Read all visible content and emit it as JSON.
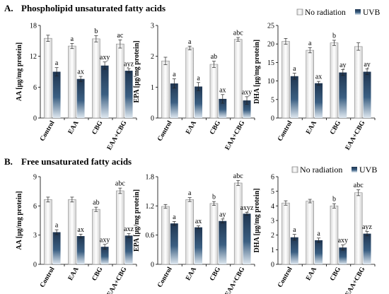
{
  "colors": {
    "no_radiation": "#f0f0f0",
    "uvb": "#2f4f6f",
    "bar_edge": "#808080",
    "axis": "#000000"
  },
  "sections": [
    {
      "letter": "A.",
      "title": "Phospholipid unsaturated fatty acids"
    },
    {
      "letter": "B.",
      "title": "Free unsaturated fatty acids"
    }
  ],
  "legend": [
    {
      "name": "No radiation",
      "color": "#f0f0f0"
    },
    {
      "name": "UVB",
      "color": "#2f4f6f"
    }
  ],
  "chart_data": [
    {
      "type": "bar",
      "section": "A",
      "ylabel": "AA [μg/mg protein]",
      "categories": [
        "Control",
        "EAA",
        "CBG",
        "EAA+CBG"
      ],
      "ylim": [
        0,
        18
      ],
      "yticks": [
        0,
        6,
        12,
        18
      ],
      "ytick_labels": [
        "0",
        "6",
        "12",
        "18"
      ],
      "series": [
        {
          "name": "No radiation",
          "values": [
            15.5,
            14.0,
            15.4,
            14.4
          ],
          "errors": [
            0.6,
            0.5,
            0.6,
            0.8
          ],
          "labels": [
            "",
            "a",
            "b",
            "ac"
          ]
        },
        {
          "name": "UVB",
          "values": [
            9.0,
            7.6,
            10.2,
            9.2
          ],
          "errors": [
            0.8,
            0.5,
            0.7,
            0.4
          ],
          "labels": [
            "a",
            "ax",
            "axy",
            "ayz"
          ]
        }
      ]
    },
    {
      "type": "bar",
      "section": "A",
      "ylabel": "EPA [μg/mg protein]",
      "categories": [
        "Control",
        "EAA",
        "CBG",
        "EAA+CBG"
      ],
      "ylim": [
        0,
        3
      ],
      "yticks": [
        0,
        1,
        2,
        3
      ],
      "ytick_labels": [
        "0",
        "1",
        "2",
        "3"
      ],
      "series": [
        {
          "name": "No radiation",
          "values": [
            1.85,
            2.27,
            1.74,
            2.55
          ],
          "errors": [
            0.12,
            0.06,
            0.1,
            0.06
          ],
          "labels": [
            "",
            "a",
            "ab",
            "abc"
          ]
        },
        {
          "name": "UVB",
          "values": [
            1.12,
            1.02,
            0.62,
            0.57
          ],
          "errors": [
            0.15,
            0.13,
            0.14,
            0.12
          ],
          "labels": [
            "a",
            "a",
            "ax",
            "axy"
          ]
        }
      ]
    },
    {
      "type": "bar",
      "section": "A",
      "ylabel": "DHA [μg/mg protein]",
      "categories": [
        "Control",
        "EAA",
        "CBG",
        "EAA+CBG"
      ],
      "ylim": [
        0,
        25
      ],
      "yticks": [
        0,
        5,
        10,
        15,
        20,
        25
      ],
      "ytick_labels": [
        "0",
        "5",
        "10",
        "15",
        "20",
        "25"
      ],
      "series": [
        {
          "name": "No radiation",
          "values": [
            20.7,
            18.3,
            20.3,
            19.3
          ],
          "errors": [
            0.8,
            0.7,
            0.7,
            1.0
          ],
          "labels": [
            "",
            "a",
            "b",
            ""
          ]
        },
        {
          "name": "UVB",
          "values": [
            11.3,
            9.4,
            12.3,
            12.5
          ],
          "errors": [
            0.8,
            0.5,
            0.8,
            0.8
          ],
          "labels": [
            "a",
            "ax",
            "ay",
            "ay"
          ]
        }
      ]
    },
    {
      "type": "bar",
      "section": "B",
      "ylabel": "AA [μg/mg protein]",
      "categories": [
        "Control",
        "EAA",
        "CBG",
        "EAA+CBG"
      ],
      "ylim": [
        0,
        9
      ],
      "yticks": [
        0,
        3,
        6,
        9
      ],
      "ytick_labels": [
        "0",
        "3",
        "6",
        "9"
      ],
      "series": [
        {
          "name": "No radiation",
          "values": [
            6.65,
            6.65,
            5.65,
            7.55
          ],
          "errors": [
            0.25,
            0.25,
            0.22,
            0.28
          ],
          "labels": [
            "",
            "",
            "ab",
            "abc"
          ]
        },
        {
          "name": "UVB",
          "values": [
            3.3,
            2.9,
            1.8,
            2.95
          ],
          "errors": [
            0.25,
            0.2,
            0.25,
            0.2
          ],
          "labels": [
            "a",
            "ax",
            "axy",
            "axz"
          ]
        }
      ]
    },
    {
      "type": "bar",
      "section": "B",
      "ylabel": "EPA [μg/mg protein]",
      "categories": [
        "Control",
        "EAA",
        "CBG",
        "EAA+CBG"
      ],
      "ylim": [
        0,
        1.8
      ],
      "yticks": [
        0,
        0.6,
        1.2,
        1.8
      ],
      "ytick_labels": [
        "0",
        "0.6",
        "1.2",
        "1.8"
      ],
      "series": [
        {
          "name": "No radiation",
          "values": [
            1.19,
            1.33,
            1.25,
            1.67
          ],
          "errors": [
            0.04,
            0.04,
            0.04,
            0.05
          ],
          "labels": [
            "",
            "a",
            "b",
            "abc"
          ]
        },
        {
          "name": "UVB",
          "values": [
            0.84,
            0.76,
            0.89,
            1.04
          ],
          "errors": [
            0.04,
            0.03,
            0.04,
            0.03
          ],
          "labels": [
            "a",
            "ax",
            "ay",
            "axyz"
          ]
        }
      ]
    },
    {
      "type": "bar",
      "section": "B",
      "ylabel": "DHA [μg/mg protein]",
      "categories": [
        "Control",
        "EAA",
        "CBG",
        "EAA+CBG"
      ],
      "ylim": [
        0,
        6
      ],
      "yticks": [
        0,
        1,
        2,
        3,
        4,
        5,
        6
      ],
      "ytick_labels": [
        "0",
        "1",
        "2",
        "3",
        "4",
        "5",
        "6"
      ],
      "series": [
        {
          "name": "No radiation",
          "values": [
            4.2,
            4.33,
            4.0,
            4.9
          ],
          "errors": [
            0.15,
            0.12,
            0.15,
            0.2
          ],
          "labels": [
            "",
            "",
            "b",
            "abc"
          ]
        },
        {
          "name": "UVB",
          "values": [
            1.85,
            1.65,
            1.15,
            2.1
          ],
          "errors": [
            0.2,
            0.15,
            0.18,
            0.15
          ],
          "labels": [
            "a",
            "a",
            "axy",
            "ayz"
          ]
        }
      ]
    }
  ]
}
